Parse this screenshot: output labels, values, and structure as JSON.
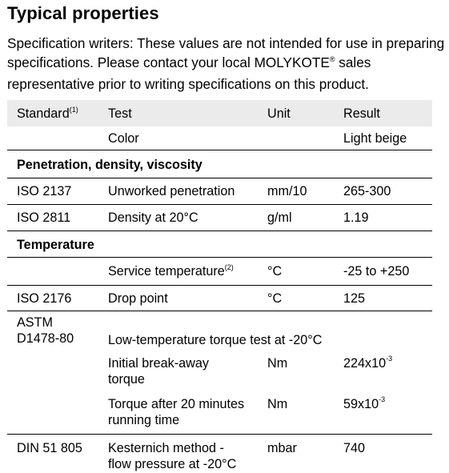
{
  "title": "Typical properties",
  "note": {
    "text": "Specification writers: These values are not intended for use in preparing specifications. Please contact your local MOLYKOTE",
    "reg": "®",
    "text2": " sales representative prior to writing specifications on this product."
  },
  "headers": {
    "standard": "Standard",
    "standard_note": "(1)",
    "test": "Test",
    "unit": "Unit",
    "result": "Result"
  },
  "color_row": {
    "test": "Color",
    "result": "Light beige"
  },
  "section_penetration": "Penetration, density, viscosity",
  "iso2137": {
    "standard": "ISO 2137",
    "test": "Unworked penetration",
    "unit": "mm/10",
    "result": "265-300"
  },
  "iso2811": {
    "standard": "ISO 2811",
    "test": "Density at 20°C",
    "unit": "g/ml",
    "result": "1.19"
  },
  "section_temperature": "Temperature",
  "service": {
    "test": "Service temperature",
    "test_note": "(2)",
    "unit": "°C",
    "result": "-25 to +250"
  },
  "iso2176": {
    "standard": "ISO 2176",
    "test": "Drop point",
    "unit": "°C",
    "result": "125"
  },
  "astm": {
    "standard_line1": "ASTM",
    "standard_line2": "D1478-80",
    "test": "Low-temperature torque test at -20°C",
    "breakaway": {
      "line1": "Initial break-away",
      "line2": "torque",
      "unit": "Nm",
      "result_base": "224x10",
      "result_exp": "-3"
    },
    "after20": {
      "line1": "Torque after 20 minutes",
      "line2": "running time",
      "unit": "Nm",
      "result_base": "59x10",
      "result_exp": "-3"
    }
  },
  "din": {
    "standard": "DIN 51 805",
    "test_line1": "Kesternich method -",
    "test_line2": "flow pressure at -20°C",
    "unit": "mbar",
    "result": "740"
  }
}
